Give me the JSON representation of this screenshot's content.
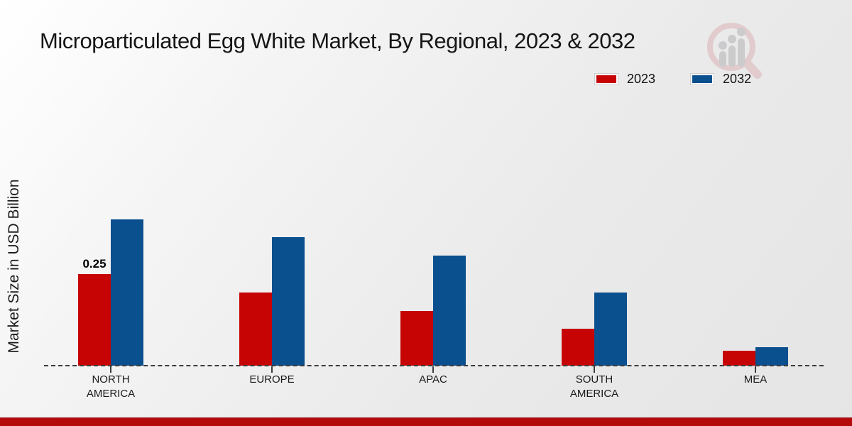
{
  "title": "Microparticulated Egg White Market, By Regional, 2023 & 2032",
  "y_axis_label": "Market Size in USD Billion",
  "legend": {
    "items": [
      {
        "label": "2023",
        "color": "#c60404"
      },
      {
        "label": "2032",
        "color": "#0a4f8e"
      }
    ],
    "position": "top-right"
  },
  "watermark": "magnifier-bar-chart-logo",
  "footer_accent_color": "#b40a0a",
  "chart_data": {
    "type": "bar",
    "categories": [
      "NORTH AMERICA",
      "EUROPE",
      "APAC",
      "SOUTH AMERICA",
      "MEA"
    ],
    "category_label_lines": [
      [
        "NORTH",
        "AMERICA"
      ],
      [
        "EUROPE"
      ],
      [
        "APAC"
      ],
      [
        "SOUTH",
        "AMERICA"
      ],
      [
        "MEA"
      ]
    ],
    "series": [
      {
        "name": "2023",
        "color": "#c60404",
        "values": [
          0.25,
          0.2,
          0.15,
          0.1,
          0.04
        ]
      },
      {
        "name": "2032",
        "color": "#0a4f8e",
        "values": [
          0.4,
          0.35,
          0.3,
          0.2,
          0.05
        ]
      }
    ],
    "annotations": [
      {
        "series_index": 0,
        "category_index": 0,
        "text": "0.25"
      }
    ],
    "title": "Microparticulated Egg White Market, By Regional, 2023 & 2032",
    "xlabel": "",
    "ylabel": "Market Size in USD Billion",
    "ylim": [
      0,
      0.45
    ],
    "grid": false,
    "baseline_style": "dashed",
    "y_ticks_visible": false
  }
}
